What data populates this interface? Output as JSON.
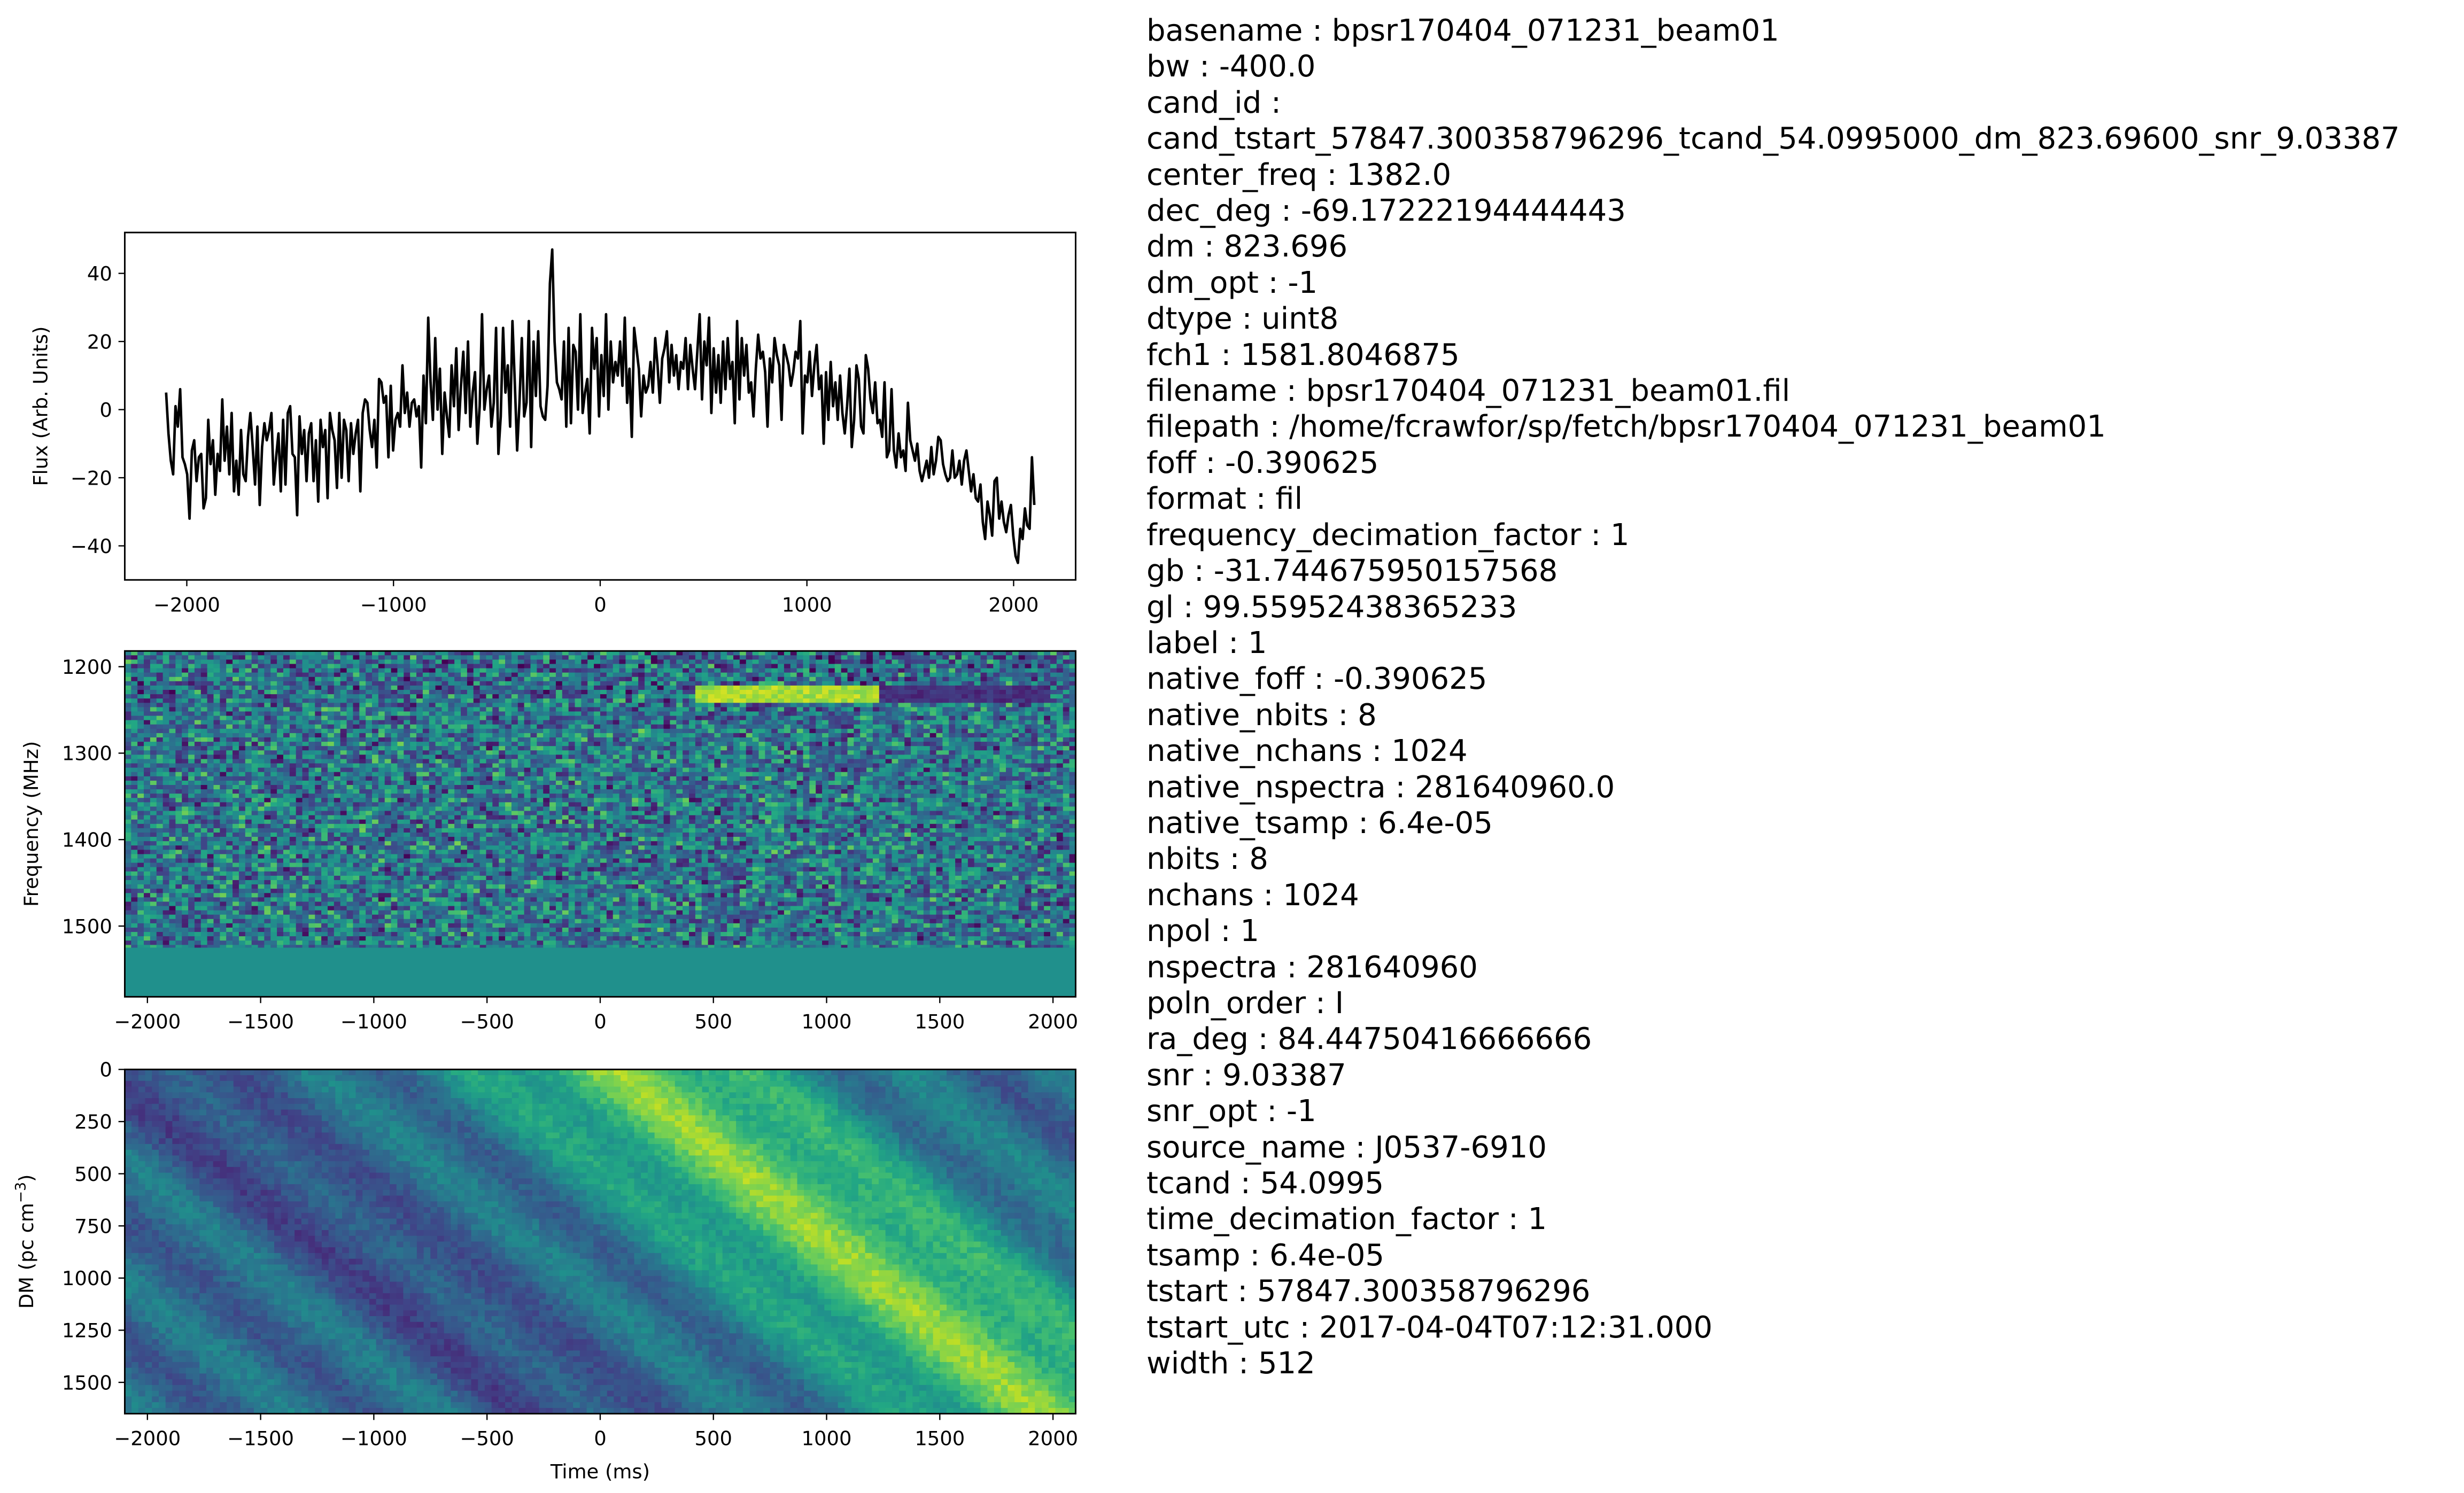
{
  "chart_data": [
    {
      "type": "line",
      "ylabel": "Flux (Arb. Units)",
      "xlim": [
        -2300,
        2300
      ],
      "ylim": [
        -50,
        52
      ],
      "xticks": [
        -2000,
        -1000,
        0,
        1000,
        2000
      ],
      "yticks": [
        -40,
        -20,
        0,
        20,
        40
      ],
      "x_start": -2100,
      "x_end": 2100,
      "series": [
        {
          "color": "#000000",
          "values": [
            5,
            -7,
            -15,
            -19,
            1,
            -5,
            6,
            -14,
            -16,
            -19,
            -32,
            -12,
            -9,
            -21,
            -14,
            -13,
            -29,
            -26,
            -3,
            -16,
            -9,
            -25,
            -13,
            -18,
            3,
            -15,
            -5,
            -19,
            -1,
            -24,
            -15,
            -25,
            -6,
            -19,
            -21,
            -8,
            -1,
            -11,
            -22,
            -5,
            -28,
            -11,
            -4,
            -9,
            -6,
            -1,
            -22,
            -14,
            -7,
            -24,
            -3,
            -22,
            -1,
            1,
            -13,
            -14,
            -31,
            -2,
            -13,
            -6,
            -21,
            -7,
            -4,
            -21,
            -9,
            -27,
            -3,
            -11,
            -6,
            -26,
            -1,
            -6,
            -9,
            -23,
            -1,
            -20,
            -3,
            -6,
            -21,
            -4,
            -13,
            -7,
            -3,
            -24,
            -1,
            3,
            2,
            -6,
            -11,
            -3,
            -17,
            9,
            8,
            2,
            4,
            -14,
            7,
            -12,
            -3,
            -1,
            -5,
            13,
            -1,
            5,
            -5,
            2,
            3,
            -2,
            1,
            -17,
            10,
            -4,
            27,
            8,
            -3,
            21,
            0,
            12,
            -13,
            5,
            -2,
            -8,
            13,
            1,
            18,
            -6,
            7,
            17,
            -1,
            20,
            -5,
            5,
            11,
            -10,
            1,
            28,
            0,
            6,
            10,
            -5,
            2,
            24,
            -13,
            -2,
            24,
            5,
            13,
            -5,
            26,
            8,
            -12,
            2,
            21,
            -2,
            2,
            26,
            -11,
            20,
            4,
            23,
            1,
            -2,
            -3,
            7,
            37,
            47,
            20,
            8,
            6,
            3,
            20,
            -5,
            24,
            -4,
            19,
            17,
            0,
            28,
            -1,
            5,
            9,
            -7,
            24,
            12,
            21,
            -2,
            16,
            4,
            28,
            0,
            20,
            8,
            14,
            10,
            20,
            7,
            27,
            2,
            12,
            -8,
            24,
            18,
            12,
            -2,
            10,
            5,
            7,
            14,
            5,
            21,
            13,
            2,
            15,
            18,
            23,
            8,
            19,
            10,
            16,
            6,
            14,
            12,
            21,
            6,
            19,
            12,
            6,
            17,
            28,
            3,
            20,
            13,
            27,
            -1,
            18,
            5,
            16,
            2,
            20,
            6,
            21,
            9,
            14,
            -4,
            26,
            3,
            21,
            10,
            19,
            5,
            8,
            -2,
            12,
            22,
            15,
            17,
            11,
            -5,
            15,
            8,
            21,
            16,
            13,
            -3,
            19,
            16,
            13,
            7,
            11,
            17,
            15,
            26,
            -7,
            10,
            8,
            17,
            4,
            13,
            19,
            6,
            10,
            -10,
            11,
            -3,
            14,
            1,
            8,
            -3,
            10,
            -1,
            -7,
            1,
            12,
            -11,
            -3,
            13,
            9,
            -5,
            -7,
            16,
            12,
            3,
            -1,
            8,
            -4,
            -3,
            -8,
            8,
            -14,
            -12,
            6,
            -12,
            -17,
            -7,
            -14,
            -12,
            -18,
            2,
            -9,
            -12,
            -15,
            -10,
            -18,
            -21,
            -18,
            -15,
            -20,
            -11,
            -19,
            -15,
            -8,
            -9,
            -16,
            -19,
            -21,
            -20,
            -12,
            -20,
            -19,
            -15,
            -22,
            -15,
            -12,
            -18,
            -24,
            -19,
            -26,
            -27,
            -22,
            -33,
            -38,
            -27,
            -31,
            -37,
            -21,
            -20,
            -32,
            -27,
            -33,
            -36,
            -31,
            -28,
            -37,
            -43,
            -45,
            -35,
            -38,
            -29,
            -34,
            -35,
            -14,
            -28
          ]
        }
      ]
    },
    {
      "type": "heatmap",
      "ylabel": "Frequency (MHz)",
      "xlim": [
        -2100,
        2100
      ],
      "ylim": [
        1581.8,
        1181.8
      ],
      "xticks": [
        -2000,
        -1500,
        -1000,
        -500,
        0,
        500,
        1000,
        1500,
        2000
      ],
      "yticks": [
        1200,
        1300,
        1400,
        1500
      ],
      "colormap": "viridis",
      "flat_band_below_mhz": 1525,
      "signal": {
        "x_start": 420,
        "x_end": 1220,
        "freq": 1232,
        "note_low_after": 1220
      }
    },
    {
      "type": "heatmap",
      "xlabel": "Time (ms)",
      "ylabel_parts": [
        "DM (pc cm",
        "−3",
        ")"
      ],
      "xlim": [
        -2100,
        2100
      ],
      "ylim": [
        1650,
        0
      ],
      "xticks": [
        -2000,
        -1500,
        -1000,
        -500,
        0,
        500,
        1000,
        1500,
        2000
      ],
      "yticks": [
        0,
        250,
        500,
        750,
        1000,
        1250,
        1500
      ],
      "colormap": "viridis"
    }
  ],
  "metadata": [
    "basename : bpsr170404_071231_beam01",
    "bw : -400.0",
    "cand_id :",
    "cand_tstart_57847.300358796296_tcand_54.0995000_dm_823.69600_snr_9.03387",
    "center_freq : 1382.0",
    "dec_deg : -69.17222194444443",
    "dm : 823.696",
    "dm_opt : -1",
    "dtype : uint8",
    "fch1 : 1581.8046875",
    "filename : bpsr170404_071231_beam01.fil",
    "filepath : /home/fcrawfor/sp/fetch/bpsr170404_071231_beam01",
    "foff : -0.390625",
    "format : fil",
    "frequency_decimation_factor : 1",
    "gb : -31.744675950157568",
    "gl : 99.55952438365233",
    "label : 1",
    "native_foff : -0.390625",
    "native_nbits : 8",
    "native_nchans : 1024",
    "native_nspectra : 281640960.0",
    "native_tsamp : 6.4e-05",
    "nbits : 8",
    "nchans : 1024",
    "npol : 1",
    "nspectra : 281640960",
    "poln_order : I",
    "ra_deg : 84.44750416666666",
    "snr : 9.03387",
    "snr_opt : -1",
    "source_name : J0537-6910",
    "tcand : 54.0995",
    "time_decimation_factor : 1",
    "tsamp : 6.4e-05",
    "tstart : 57847.300358796296",
    "tstart_utc : 2017-04-04T07:12:31.000",
    "width : 512"
  ]
}
